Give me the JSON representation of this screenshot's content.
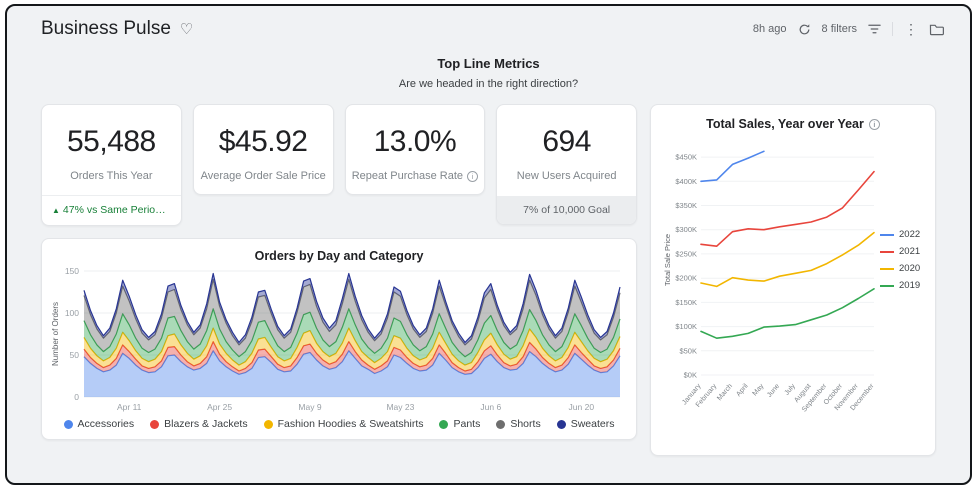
{
  "header": {
    "title": "Business Pulse",
    "updated": "8h ago",
    "filters_label": "8 filters"
  },
  "section": {
    "title": "Top Line Metrics",
    "subtitle": "Are we headed in the right direction?"
  },
  "kpis": [
    {
      "value": "55,488",
      "label": "Orders This Year",
      "delta_icon": "▲",
      "delta": "47% vs Same Period …"
    },
    {
      "value": "$45.92",
      "label": "Average Order Sale Price"
    },
    {
      "value": "13.0%",
      "label": "Repeat Purchase Rate"
    },
    {
      "value": "694",
      "label": "New Users Acquired",
      "goal_pct": "7%",
      "goal_rest": " of 10,000 Goal"
    }
  ],
  "chart_data": [
    {
      "type": "area",
      "stacked": true,
      "title": "Orders by Day and Category",
      "ylabel": "Number of Orders",
      "ylim": [
        0,
        150
      ],
      "yticks": [
        0,
        50,
        100,
        150
      ],
      "x_tick_labels": [
        "Apr 11",
        "Apr 25",
        "May 9",
        "May 23",
        "Jun 6",
        "Jun 20"
      ],
      "x_tick_index": [
        7,
        21,
        35,
        49,
        63,
        77
      ],
      "series": [
        {
          "name": "Accessories",
          "color": "#4f86ec",
          "values": [
            48,
            40,
            34,
            30,
            32,
            38,
            52,
            46,
            38,
            32,
            29,
            30,
            36,
            49,
            50,
            42,
            36,
            32,
            34,
            40,
            55,
            43,
            36,
            31,
            27,
            29,
            34,
            47,
            48,
            41,
            33,
            30,
            31,
            39,
            51,
            53,
            44,
            37,
            33,
            35,
            42,
            55,
            46,
            37,
            33,
            28,
            31,
            36,
            50,
            47,
            40,
            34,
            31,
            32,
            38,
            52,
            44,
            35,
            30,
            27,
            28,
            35,
            46,
            51,
            42,
            35,
            32,
            33,
            40,
            54,
            48,
            40,
            34,
            30,
            32,
            39,
            52,
            45,
            38,
            32,
            29,
            30,
            37,
            49
          ]
        },
        {
          "name": "Blazers & Jackets",
          "color": "#e8453c",
          "values": [
            9,
            7,
            6,
            5,
            6,
            8,
            10,
            8,
            7,
            5,
            5,
            6,
            7,
            10,
            10,
            8,
            6,
            5,
            6,
            8,
            11,
            8,
            6,
            5,
            4,
            5,
            7,
            9,
            9,
            7,
            6,
            5,
            6,
            8,
            10,
            10,
            8,
            7,
            6,
            7,
            9,
            11,
            8,
            7,
            5,
            5,
            6,
            7,
            9,
            9,
            7,
            6,
            5,
            6,
            8,
            10,
            8,
            6,
            5,
            4,
            5,
            7,
            9,
            10,
            8,
            6,
            5,
            6,
            8,
            11,
            9,
            7,
            6,
            5,
            6,
            8,
            10,
            8,
            7,
            5,
            5,
            6,
            7,
            9
          ]
        },
        {
          "name": "Fashion Hoodies & Sweatshirts",
          "color": "#f2b600",
          "values": [
            14,
            11,
            9,
            8,
            9,
            12,
            15,
            13,
            10,
            9,
            8,
            9,
            11,
            14,
            15,
            12,
            10,
            8,
            9,
            13,
            16,
            12,
            10,
            8,
            7,
            8,
            11,
            13,
            14,
            11,
            9,
            8,
            9,
            12,
            15,
            16,
            12,
            10,
            9,
            10,
            13,
            16,
            13,
            10,
            9,
            8,
            9,
            11,
            14,
            14,
            11,
            9,
            8,
            9,
            12,
            15,
            12,
            10,
            8,
            7,
            8,
            11,
            13,
            15,
            12,
            10,
            8,
            9,
            13,
            16,
            14,
            11,
            9,
            8,
            9,
            12,
            15,
            13,
            10,
            9,
            8,
            9,
            11,
            14
          ]
        },
        {
          "name": "Pants",
          "color": "#34a853",
          "values": [
            20,
            16,
            13,
            11,
            13,
            17,
            22,
            19,
            15,
            12,
            11,
            12,
            16,
            21,
            21,
            17,
            14,
            12,
            14,
            18,
            23,
            18,
            14,
            12,
            10,
            12,
            15,
            20,
            20,
            16,
            13,
            11,
            13,
            17,
            22,
            22,
            18,
            14,
            12,
            14,
            19,
            23,
            19,
            15,
            12,
            11,
            12,
            16,
            21,
            20,
            16,
            13,
            11,
            13,
            17,
            22,
            18,
            14,
            12,
            10,
            12,
            15,
            20,
            21,
            17,
            14,
            12,
            14,
            18,
            23,
            20,
            16,
            13,
            11,
            13,
            17,
            22,
            19,
            15,
            12,
            11,
            12,
            16,
            21
          ]
        },
        {
          "name": "Shorts",
          "color": "#6e6e6e",
          "values": [
            30,
            24,
            19,
            16,
            18,
            25,
            33,
            28,
            23,
            18,
            15,
            17,
            24,
            31,
            32,
            25,
            20,
            17,
            19,
            26,
            35,
            27,
            22,
            17,
            14,
            16,
            23,
            30,
            30,
            24,
            19,
            16,
            18,
            25,
            33,
            33,
            26,
            21,
            18,
            20,
            28,
            35,
            28,
            23,
            18,
            15,
            17,
            24,
            31,
            30,
            24,
            19,
            16,
            18,
            25,
            33,
            27,
            22,
            17,
            14,
            16,
            22,
            30,
            31,
            25,
            20,
            17,
            19,
            26,
            35,
            30,
            24,
            19,
            16,
            18,
            25,
            33,
            28,
            23,
            18,
            15,
            17,
            24,
            31
          ]
        },
        {
          "name": "Sweaters",
          "color": "#283593",
          "values": [
            6,
            5,
            4,
            3,
            4,
            5,
            7,
            6,
            5,
            4,
            3,
            4,
            5,
            7,
            7,
            5,
            4,
            3,
            4,
            6,
            7,
            5,
            4,
            4,
            3,
            4,
            5,
            6,
            6,
            5,
            4,
            3,
            4,
            5,
            7,
            7,
            6,
            5,
            4,
            5,
            6,
            7,
            6,
            5,
            4,
            3,
            4,
            5,
            6,
            6,
            5,
            4,
            3,
            4,
            5,
            7,
            5,
            4,
            4,
            3,
            4,
            5,
            6,
            7,
            5,
            4,
            3,
            4,
            6,
            7,
            6,
            5,
            4,
            3,
            4,
            5,
            7,
            6,
            5,
            4,
            3,
            4,
            5,
            7
          ]
        }
      ],
      "legend_position": "bottom"
    },
    {
      "type": "line",
      "title": "Total Sales, Year over Year",
      "ylabel": "Total Sale Price",
      "unit": "$K",
      "ylim": [
        0,
        475
      ],
      "yticks": [
        0,
        50,
        100,
        150,
        200,
        250,
        300,
        350,
        400,
        450
      ],
      "ytick_labels": [
        "$0K",
        "$50K",
        "$100K",
        "$150K",
        "$200K",
        "$250K",
        "$300K",
        "$350K",
        "$400K",
        "$450K"
      ],
      "x_labels": [
        "January",
        "February",
        "March",
        "April",
        "May",
        "June",
        "July",
        "August",
        "September",
        "October",
        "November",
        "December"
      ],
      "series": [
        {
          "name": "2022",
          "color": "#4f86ec",
          "values": [
            400,
            403,
            435,
            448,
            462,
            null,
            null,
            null,
            null,
            null,
            null,
            null
          ]
        },
        {
          "name": "2021",
          "color": "#e8453c",
          "values": [
            270,
            266,
            296,
            302,
            300,
            306,
            311,
            316,
            326,
            345,
            382,
            420
          ]
        },
        {
          "name": "2020",
          "color": "#f2b600",
          "values": [
            190,
            183,
            201,
            196,
            194,
            204,
            210,
            216,
            230,
            248,
            268,
            294
          ]
        },
        {
          "name": "2019",
          "color": "#34a853",
          "values": [
            90,
            76,
            80,
            86,
            99,
            101,
            104,
            114,
            124,
            139,
            158,
            178
          ]
        }
      ],
      "legend_position": "right"
    }
  ]
}
